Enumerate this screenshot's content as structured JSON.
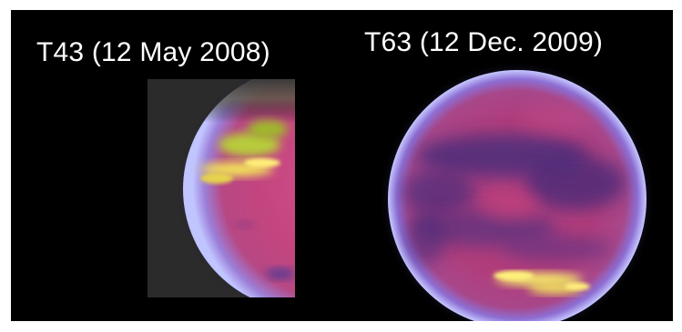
{
  "captions": {
    "left": "T43 (12 May 2008)",
    "right": "T63 (12 Dec. 2009)"
  },
  "colors": {
    "background": "#000000",
    "frame_border": "#ffffff",
    "text": "#ffffff",
    "disk_magenta": "#c2477f",
    "limb_blue": "#a8a8ff",
    "dark_region": "#4a2a78",
    "cloud_yellow": "#f4f060"
  }
}
